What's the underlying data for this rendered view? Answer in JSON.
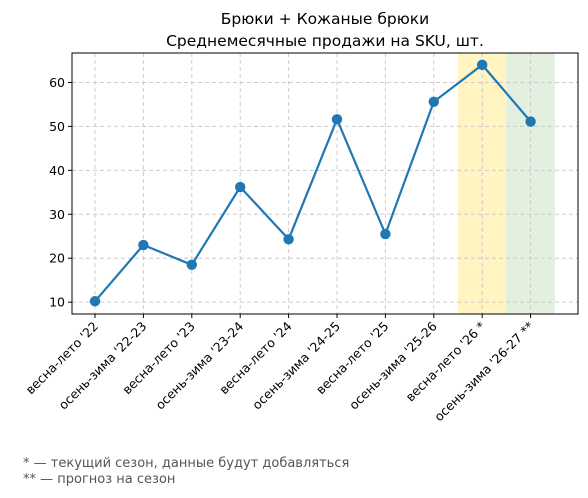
{
  "chart_data": {
    "type": "line",
    "title": "Брюки + Кожаные брюки",
    "subtitle": "Среднемесячные продажи на SKU, шт.",
    "xlabel": "",
    "ylabel": "",
    "categories": [
      "весна-лето '22",
      "осень-зима '22-23",
      "весна-лето '23",
      "осень-зима '23-24",
      "весна-лето '24",
      "осень-зима '24-25",
      "весна-лето '25",
      "осень-зима '25-26",
      "весна-лето '26 *",
      "осень-зима '26-27 **"
    ],
    "series": [
      {
        "values": [
          10.2,
          23.0,
          18.5,
          36.2,
          24.3,
          51.6,
          25.5,
          55.6,
          64.0,
          51.1
        ],
        "color": "#1f77b4"
      }
    ],
    "ylim": [
      7.3,
      66.7
    ],
    "yticks": [
      10,
      20,
      30,
      40,
      50,
      60
    ],
    "grid": true,
    "highlights": [
      {
        "category": "весна-лето '26 *",
        "meaning": "current season",
        "color": "#fff4c2"
      },
      {
        "category": "осень-зима '26-27 **",
        "meaning": "forecast",
        "color": "#e3f0df"
      }
    ]
  },
  "notes": [
    "* — текущий сезон, данные будут добавляться",
    "** — прогноз на сезон"
  ]
}
